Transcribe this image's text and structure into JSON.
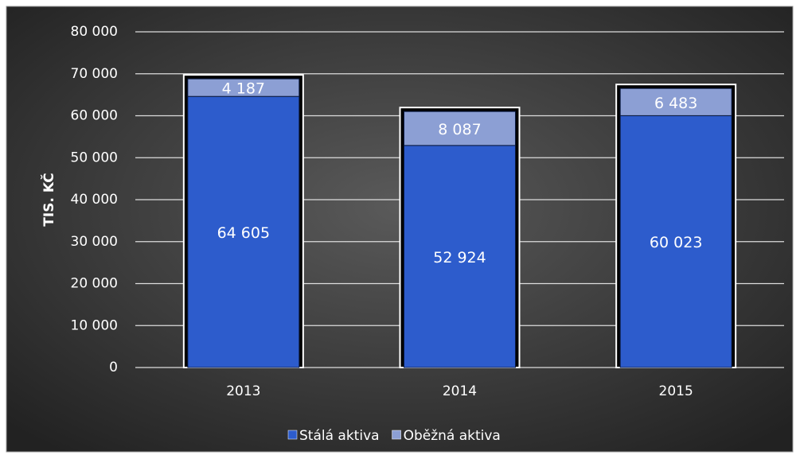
{
  "chart_data": {
    "type": "stacked_bar",
    "categories": [
      "2013",
      "2014",
      "2015"
    ],
    "series": [
      {
        "name": "Stálá aktiva",
        "color": "#2d5ccc",
        "values": [
          64605,
          52924,
          60023
        ],
        "value_labels": [
          "64 605",
          "52 924",
          "60 023"
        ]
      },
      {
        "name": "Oběžná aktiva",
        "color": "#8c9fd4",
        "values": [
          4187,
          8087,
          6483
        ],
        "value_labels": [
          "4 187",
          "8 087",
          "6 483"
        ]
      }
    ],
    "ylabel": "TIS. KČ",
    "ylim": [
      0,
      80000
    ],
    "yticks": [
      0,
      {
        "value": 10000,
        "label": "10 000"
      },
      {
        "value": 20000,
        "label": "20 000"
      },
      {
        "value": 30000,
        "label": "30 000"
      },
      {
        "value": 40000,
        "label": "40 000"
      },
      {
        "value": 50000,
        "label": "50 000"
      },
      {
        "value": 60000,
        "label": "60 000"
      },
      {
        "value": 70000,
        "label": "70 000"
      },
      {
        "value": 80000,
        "label": "80 000"
      }
    ],
    "grid": true,
    "legend": "bottom"
  }
}
